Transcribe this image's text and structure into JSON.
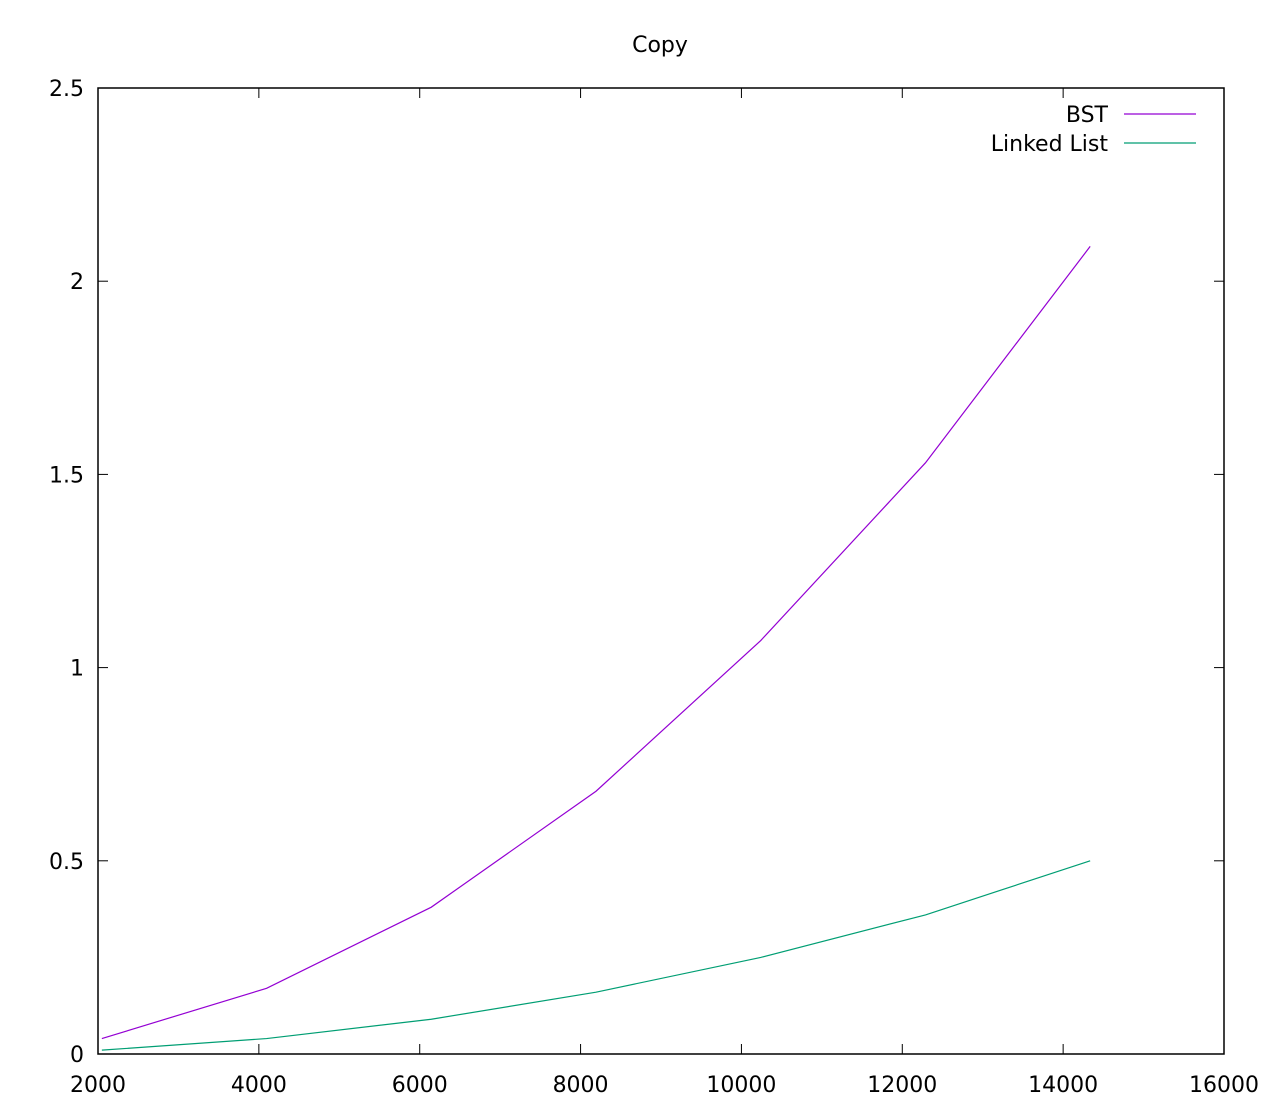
{
  "chart_data": {
    "type": "line",
    "title": "Copy",
    "xlabel": "",
    "ylabel": "",
    "xlim": [
      2000,
      16000
    ],
    "ylim": [
      0,
      2.5
    ],
    "x_ticks": [
      "2000",
      "4000",
      "6000",
      "8000",
      "10000",
      "12000",
      "14000",
      "16000"
    ],
    "y_ticks": [
      "0",
      "0.5",
      "1",
      "1.5",
      "2",
      "2.5"
    ],
    "x": [
      2048,
      4096,
      6144,
      8192,
      10240,
      12288,
      14336
    ],
    "series": [
      {
        "name": "BST",
        "color": "#9400d3",
        "values": [
          0.04,
          0.17,
          0.38,
          0.68,
          1.07,
          1.53,
          2.09
        ]
      },
      {
        "name": "Linked List",
        "color": "#009e73",
        "values": [
          0.01,
          0.04,
          0.09,
          0.16,
          0.25,
          0.36,
          0.5
        ]
      }
    ],
    "grid": false,
    "legend_position": "top-right"
  }
}
